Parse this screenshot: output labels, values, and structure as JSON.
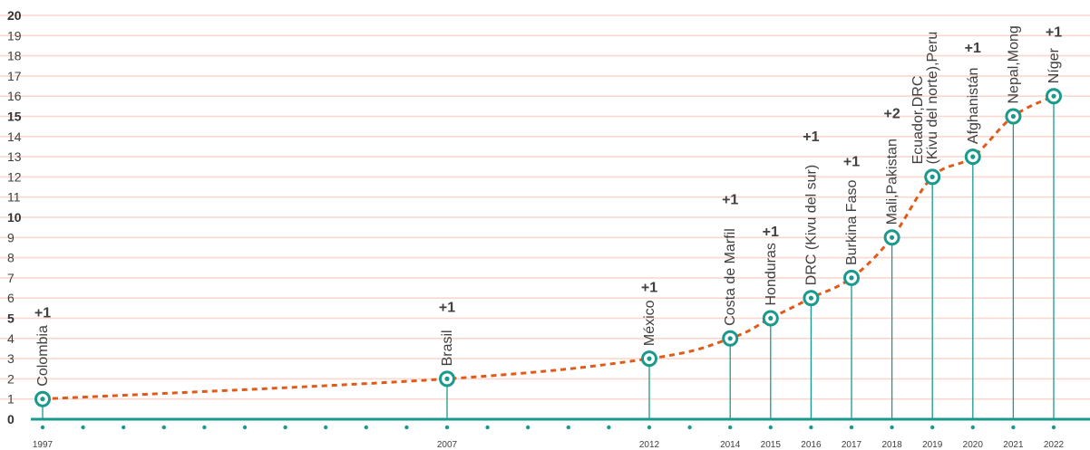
{
  "chart_data": {
    "type": "line",
    "title": "",
    "xlabel": "",
    "ylabel": "",
    "ylim": [
      0,
      20
    ],
    "y_ticks": [
      "0",
      "1",
      "2",
      "3",
      "4",
      "5",
      "6",
      "7",
      "8",
      "9",
      "10",
      "11",
      "12",
      "13",
      "14",
      "15",
      "16",
      "17",
      "18",
      "19",
      "20"
    ],
    "y_bold_ticks": [
      "0",
      "5",
      "10",
      "15",
      "20"
    ],
    "grid": true,
    "colors": {
      "line": "#e05a1a",
      "marker": "#1a9a8c",
      "gridline": "#f9d8cf",
      "axis": "#1a9a8c"
    },
    "points": [
      {
        "year": "1997",
        "value": 1,
        "labels": [
          "Colombia"
        ],
        "increment": "+1"
      },
      {
        "year": "2007",
        "value": 2,
        "labels": [
          "Brasil"
        ],
        "increment": "+1"
      },
      {
        "year": "2012",
        "value": 3,
        "labels": [
          "México"
        ],
        "increment": "+1"
      },
      {
        "year": "2014",
        "value": 4,
        "labels": [
          "Costa de Marfil"
        ],
        "increment": "+1"
      },
      {
        "year": "2015",
        "value": 5,
        "labels": [
          "Honduras"
        ],
        "increment": "+1"
      },
      {
        "year": "2016",
        "value": 6,
        "labels": [
          "DRC (Kivu del sur)"
        ],
        "increment": "+1"
      },
      {
        "year": "2017",
        "value": 7,
        "labels": [
          "Burkina Faso"
        ],
        "increment": "+1"
      },
      {
        "year": "2018",
        "value": 9,
        "labels": [
          "Mali,Pakistan"
        ],
        "increment": "+2"
      },
      {
        "year": "2019",
        "value": 12,
        "labels": [
          "Ecuador,DRC",
          "(Kivu del norte),Peru"
        ],
        "increment": ""
      },
      {
        "year": "2020",
        "value": 13,
        "labels": [
          "Afghanistán"
        ],
        "increment": "+1"
      },
      {
        "year": "2021",
        "value": 15,
        "labels": [
          "Nepal,Mong"
        ],
        "increment": ""
      },
      {
        "year": "2022",
        "value": 16,
        "labels": [
          "Níger"
        ],
        "increment": "+1"
      }
    ]
  }
}
